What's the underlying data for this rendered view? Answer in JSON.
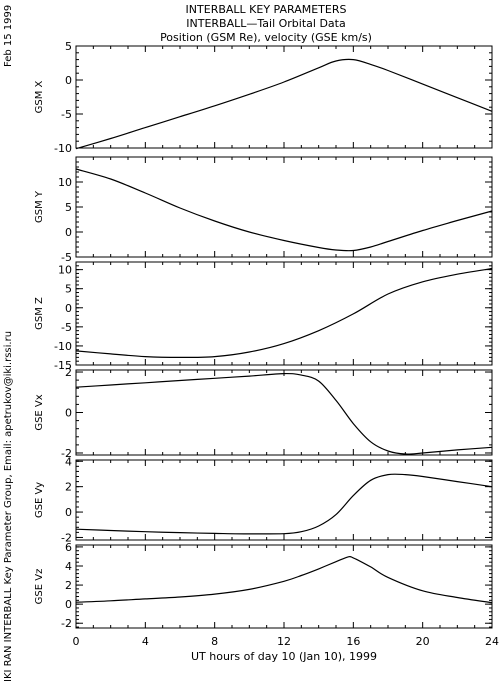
{
  "header": {
    "date_stamp": "Feb 15 1999",
    "title_lines": [
      "INTERBALL KEY PARAMETERS",
      "INTERBALL—Tail Orbital Data",
      "Position (GSM Re), velocity (GSE km/s)"
    ]
  },
  "footer": {
    "credit": "IKI RAN INTERBALL Key Parameter Group, Email: apetrukov@iki.rssi.ru"
  },
  "chart_data": [
    {
      "type": "line",
      "ylabel": "GSM X",
      "x": [
        0,
        2,
        4,
        6,
        8,
        10,
        12,
        14,
        15,
        16,
        17,
        18,
        20,
        22,
        24
      ],
      "y": [
        -10.1,
        -8.6,
        -7.0,
        -5.4,
        -3.8,
        -2.1,
        -0.3,
        1.8,
        2.8,
        3.0,
        2.3,
        1.4,
        -0.6,
        -2.6,
        -4.6
      ],
      "ylim": [
        -10,
        5
      ],
      "yticks": [
        -10,
        -5,
        0,
        5
      ],
      "xlim": [
        0,
        24
      ]
    },
    {
      "type": "line",
      "ylabel": "GSM Y",
      "x": [
        0,
        2,
        4,
        6,
        8,
        10,
        12,
        14,
        15,
        16,
        17,
        18,
        20,
        22,
        24
      ],
      "y": [
        12.6,
        10.6,
        7.8,
        4.8,
        2.2,
        0.0,
        -1.7,
        -3.1,
        -3.6,
        -3.7,
        -3.0,
        -1.9,
        0.3,
        2.3,
        4.2
      ],
      "ylim": [
        -5,
        15
      ],
      "yticks": [
        -5,
        0,
        5,
        10
      ],
      "xlim": [
        0,
        24
      ]
    },
    {
      "type": "line",
      "ylabel": "GSM Z",
      "x": [
        0,
        2,
        4,
        6,
        8,
        10,
        12,
        14,
        16,
        18,
        20,
        22,
        24
      ],
      "y": [
        -11.3,
        -12.1,
        -12.8,
        -13.0,
        -12.8,
        -11.6,
        -9.4,
        -6.0,
        -1.6,
        3.6,
        6.8,
        8.8,
        10.3
      ],
      "ylim": [
        -15,
        12
      ],
      "yticks": [
        -15,
        -10,
        -5,
        0,
        5,
        10
      ],
      "xlim": [
        0,
        24
      ]
    },
    {
      "type": "line",
      "ylabel": "GSE Vx",
      "x": [
        0,
        2,
        4,
        6,
        8,
        10,
        12,
        13,
        14,
        15,
        16,
        17,
        18,
        19,
        20,
        22,
        24
      ],
      "y": [
        1.25,
        1.36,
        1.47,
        1.58,
        1.69,
        1.8,
        1.92,
        1.85,
        1.55,
        0.6,
        -0.55,
        -1.45,
        -1.9,
        -2.05,
        -2.0,
        -1.85,
        -1.72
      ],
      "ylim": [
        -2.1,
        2.1
      ],
      "yticks": [
        -2,
        0,
        2
      ],
      "xlim": [
        0,
        24
      ]
    },
    {
      "type": "line",
      "ylabel": "GSE Vy",
      "x": [
        0,
        2,
        4,
        6,
        8,
        10,
        12,
        13,
        14,
        15,
        16,
        17,
        18,
        19,
        20,
        22,
        24
      ],
      "y": [
        -1.35,
        -1.45,
        -1.55,
        -1.62,
        -1.68,
        -1.72,
        -1.7,
        -1.55,
        -1.1,
        -0.2,
        1.3,
        2.5,
        2.95,
        2.95,
        2.8,
        2.4,
        2.0
      ],
      "ylim": [
        -2.2,
        4.1
      ],
      "yticks": [
        -2,
        0,
        2,
        4
      ],
      "xlim": [
        0,
        24
      ]
    },
    {
      "type": "line",
      "ylabel": "GSE Vz",
      "x": [
        0,
        2,
        4,
        6,
        8,
        10,
        12,
        13,
        14,
        15,
        15.7,
        16,
        17,
        18,
        20,
        22,
        24
      ],
      "y": [
        0.2,
        0.35,
        0.55,
        0.75,
        1.05,
        1.55,
        2.4,
        3.0,
        3.7,
        4.45,
        4.95,
        4.85,
        3.9,
        2.8,
        1.4,
        0.7,
        0.15
      ],
      "ylim": [
        -2.5,
        6.2
      ],
      "yticks": [
        -2,
        0,
        2,
        4,
        6
      ],
      "xlim": [
        0,
        24
      ]
    }
  ],
  "x_axis": {
    "label": "UT hours of day  10 (Jan 10), 1999",
    "ticks": [
      0,
      4,
      8,
      12,
      16,
      20,
      24
    ],
    "tick_labels": [
      "0",
      "4",
      "8",
      "12",
      "16",
      "20",
      "24"
    ]
  }
}
